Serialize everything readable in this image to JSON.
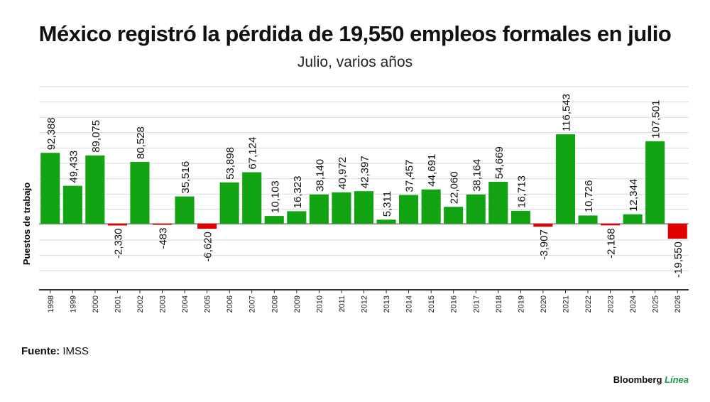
{
  "title": "México registró la pérdida de 19,550 empleos formales en julio",
  "subtitle": "Julio, varios años",
  "source": {
    "label": "Fuente:",
    "value": " IMSS"
  },
  "brand": {
    "name": "Bloomberg",
    "accent": " Línea"
  },
  "colors": {
    "positive": "#12a312",
    "negative": "#e00000",
    "grid": "#d9d9d9",
    "axis": "#333333"
  },
  "chart_data": {
    "type": "bar",
    "title": "México registró la pérdida de 19,550 empleos formales en julio",
    "subtitle": "Julio, varios años",
    "ylabel": "Puestos de trabajo",
    "xlabel": "",
    "grid": true,
    "ylim": [
      -40000,
      140000
    ],
    "categories": [
      "1998",
      "1999",
      "2000",
      "2001",
      "2002",
      "2003",
      "2004",
      "2005",
      "2006",
      "2007",
      "2008",
      "2009",
      "2010",
      "2011",
      "2012",
      "2013",
      "2014",
      "2015",
      "2016",
      "2017",
      "2018",
      "2019",
      "2020",
      "2021",
      "2022",
      "2023",
      "2024",
      "2025",
      "2026"
    ],
    "values": [
      92388,
      49433,
      89075,
      -2330,
      80528,
      -483,
      35516,
      -6620,
      53898,
      67124,
      10103,
      16323,
      38140,
      40972,
      42397,
      5311,
      37457,
      44691,
      22060,
      38164,
      54669,
      16713,
      -3907,
      116543,
      10726,
      -2168,
      12344,
      107501,
      -19550
    ],
    "labels": [
      "92,388",
      "49,433",
      "89,075",
      "-2,330",
      "80,528",
      "-483",
      "35,516",
      "-6,620",
      "53,898",
      "67,124",
      "10,103",
      "16,323",
      "38,140",
      "40,972",
      "42,397",
      "5,311",
      "37,457",
      "44,691",
      "22,060",
      "38,164",
      "54,669",
      "16,713",
      "-3,907",
      "116,543",
      "10,726",
      "-2,168",
      "12,344",
      "107,501",
      "-19,550"
    ]
  }
}
